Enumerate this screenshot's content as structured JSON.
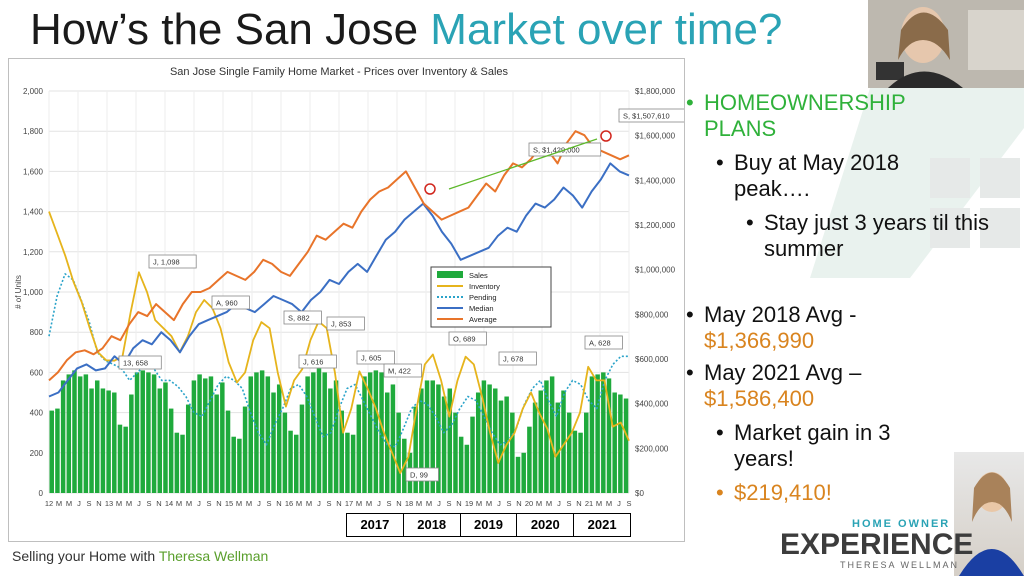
{
  "slide": {
    "title_part1": "How’s the San Jose ",
    "title_part2": "Market over time?",
    "footer_part1": "Selling your Home with ",
    "footer_part2": "Theresa Wellman",
    "logo_top": "HOME OWNER",
    "logo_main": "EXPERIENCE",
    "logo_bottom": "THERESA WELLMAN"
  },
  "bullets": [
    {
      "level": 1,
      "text": "HOMEOWNERSHIP PLANS",
      "color": "green"
    },
    {
      "level": 2,
      "text": "Buy at May 2018 peak….",
      "color": "black"
    },
    {
      "level": 3,
      "text": "Stay just 3 years til this summer",
      "color": "black"
    },
    {
      "level": 1,
      "text": "May 2018 Avg -",
      "color": "black"
    },
    {
      "level": 1,
      "text": "$1,366,990",
      "color": "orange"
    },
    {
      "level": 1,
      "text": "May 2021 Avg –",
      "color": "black"
    },
    {
      "level": 1,
      "text": "$1,586,400",
      "color": "orange"
    },
    {
      "level": 2,
      "text": "Market gain in 3 years!",
      "color": "black"
    },
    {
      "level": 2,
      "text": "$219,410!",
      "color": "orange"
    }
  ],
  "chart_data": {
    "type": "bar+line",
    "title": "San Jose Single Family Home Market - Prices over Inventory & Sales",
    "ylabel": "# of Units",
    "ylim": [
      0,
      2000
    ],
    "y2lim": [
      0,
      1800000
    ],
    "yticks": [
      "0",
      "200",
      "400",
      "600",
      "800",
      "1,000",
      "1,200",
      "1,400",
      "1,600",
      "1,800",
      "2,000"
    ],
    "y2ticks": [
      "$0",
      "$200,000",
      "$400,000",
      "$600,000",
      "$800,000",
      "$1,000,000",
      "$1,200,000",
      "$1,400,000",
      "$1,600,000",
      "$1,800,000"
    ],
    "x_tick_labels": [
      "12",
      "M",
      "M",
      "J",
      "S",
      "N",
      "13",
      "M",
      "M",
      "J",
      "S",
      "N",
      "14",
      "M",
      "M",
      "J",
      "S",
      "N",
      "15",
      "M",
      "M",
      "J",
      "S",
      "N",
      "16",
      "M",
      "M",
      "J",
      "S",
      "N",
      "17",
      "M",
      "M",
      "J",
      "S",
      "N",
      "18",
      "M",
      "M",
      "J",
      "S",
      "N",
      "19",
      "M",
      "M",
      "J",
      "S",
      "N",
      "20",
      "M",
      "M",
      "J",
      "S",
      "N",
      "21",
      "M",
      "M",
      "J",
      "S"
    ],
    "years": [
      "2017",
      "2018",
      "2019",
      "2020",
      "2021"
    ],
    "legend": [
      "Sales",
      "Inventory",
      "Pending",
      "Median",
      "Average"
    ],
    "series": [
      {
        "name": "Sales",
        "type": "bar",
        "axis": "left",
        "values": [
          410,
          420,
          560,
          590,
          610,
          580,
          590,
          520,
          560,
          520,
          510,
          500,
          340,
          330,
          490,
          600,
          610,
          600,
          590,
          520,
          550,
          420,
          300,
          290,
          440,
          560,
          590,
          570,
          580,
          490,
          550,
          410,
          280,
          270,
          430,
          580,
          600,
          610,
          580,
          500,
          540,
          400,
          310,
          290,
          440,
          580,
          600,
          620,
          600,
          520,
          560,
          410,
          300,
          290,
          440,
          580,
          600,
          610,
          600,
          500,
          540,
          400,
          270,
          200,
          430,
          520,
          560,
          560,
          540,
          480,
          520,
          400,
          280,
          240,
          380,
          500,
          560,
          540,
          520,
          460,
          480,
          400,
          180,
          200,
          330,
          450,
          510,
          560,
          580,
          450,
          510,
          400,
          310,
          300,
          400,
          580,
          590,
          600,
          570,
          500,
          490,
          470
        ]
      },
      {
        "name": "Inventory",
        "type": "line",
        "axis": "left",
        "values": [
          1400,
          1290,
          1180,
          1050,
          950,
          820,
          700,
          660,
          658,
          680,
          900,
          1098,
          1000,
          860,
          820,
          780,
          700,
          780,
          900,
          960,
          920,
          820,
          650,
          550,
          600,
          760,
          850,
          820,
          600,
          430,
          560,
          616,
          760,
          853,
          820,
          600,
          300,
          420,
          605,
          520,
          422,
          300,
          200,
          99,
          180,
          420,
          640,
          689,
          560,
          380,
          560,
          678,
          640,
          480,
          300,
          150,
          240,
          300,
          420,
          500,
          400,
          320,
          180,
          240,
          300,
          400,
          628,
          560,
          560,
          330,
          350,
          260
        ]
      },
      {
        "name": "Pending",
        "type": "line",
        "axis": "left",
        "values": [
          780,
          980,
          1090,
          1060,
          960,
          850,
          700,
          658,
          640,
          620,
          560,
          600,
          640,
          620,
          560,
          560,
          530,
          480,
          400,
          380,
          460,
          540,
          580,
          560,
          520,
          400,
          300,
          240,
          340,
          420,
          520,
          540,
          480,
          380,
          280,
          300,
          420,
          520,
          540,
          460,
          380,
          300,
          240,
          230,
          320,
          420,
          460,
          440,
          380,
          300,
          340,
          420,
          480,
          460,
          380,
          300,
          240,
          260,
          320,
          440,
          520,
          560,
          460,
          380,
          500,
          560,
          540,
          460,
          420,
          560,
          640,
          680,
          680
        ]
      },
      {
        "name": "Median",
        "type": "line",
        "axis": "left",
        "values": [
          480,
          500,
          560,
          620,
          640,
          610,
          620,
          680,
          640,
          720,
          760,
          740,
          800,
          760,
          700,
          780,
          840,
          860,
          880,
          900,
          940,
          920,
          900,
          940,
          980,
          960,
          940,
          900,
          960,
          1000,
          1060,
          1040,
          1100,
          1140,
          1100,
          1180,
          1260,
          1300,
          1360,
          1400,
          1440,
          1380,
          1300,
          1240,
          1160,
          1180,
          1200,
          1220,
          1280,
          1320,
          1300,
          1380,
          1440,
          1420,
          1460,
          1520,
          1480,
          1420,
          1500,
          1560,
          1640,
          1600,
          1580
        ]
      },
      {
        "name": "Average",
        "type": "line",
        "axis": "left",
        "values": [
          560,
          600,
          660,
          700,
          710,
          690,
          720,
          780,
          760,
          840,
          900,
          880,
          940,
          900,
          860,
          940,
          1000,
          1000,
          1020,
          1060,
          1100,
          1080,
          1060,
          1100,
          1160,
          1140,
          1100,
          1080,
          1140,
          1200,
          1280,
          1260,
          1300,
          1340,
          1320,
          1400,
          1460,
          1500,
          1520,
          1560,
          1600,
          1520,
          1440,
          1400,
          1360,
          1380,
          1400,
          1420,
          1480,
          1540,
          1500,
          1580,
          1640,
          1620,
          1660,
          1720,
          1700,
          1640,
          1740,
          1800,
          1780,
          1720,
          1700,
          1680,
          1660,
          1680
        ]
      }
    ],
    "annotations": [
      "J, 1,098",
      "A, 960",
      "S, 882",
      "J, 853",
      "J, 616",
      "J, 605",
      "M, 422",
      "O, 689",
      "J, 678",
      "13, 658",
      "D, 99",
      "A, 628",
      "S, $1,429,000",
      "S, $1,507,610"
    ]
  }
}
